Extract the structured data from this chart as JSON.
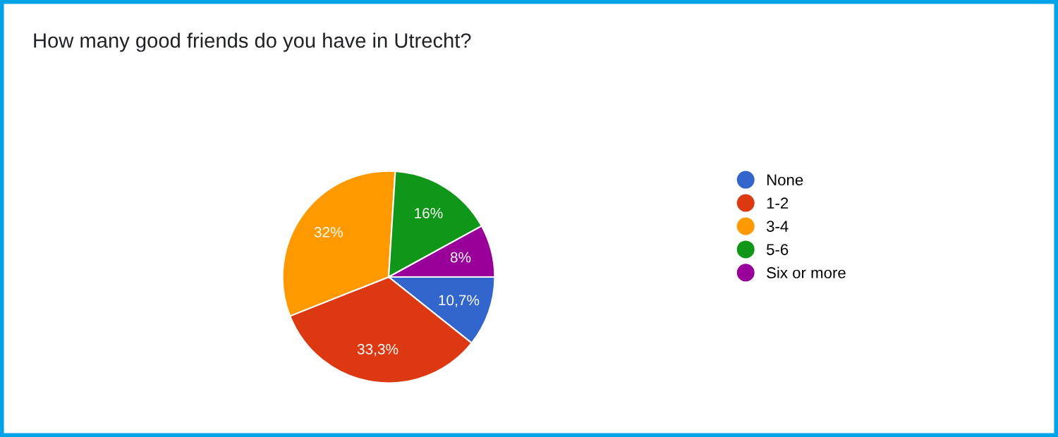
{
  "chart_data": {
    "type": "pie",
    "title": "How many good friends do you have in Utrecht?",
    "categories": [
      "None",
      "1-2",
      "3-4",
      "5-6",
      "Six or more"
    ],
    "values": [
      10.7,
      33.3,
      32,
      16,
      8
    ],
    "value_labels": [
      "10,7%",
      "33,3%",
      "32%",
      "16%",
      "8%"
    ],
    "colors": [
      "#3366cc",
      "#dc3912",
      "#ff9900",
      "#109618",
      "#990099"
    ],
    "legend": "right"
  }
}
